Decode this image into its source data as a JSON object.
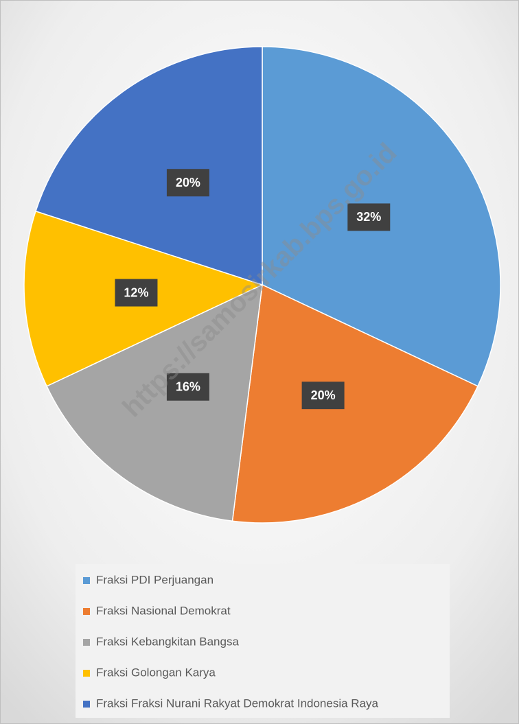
{
  "chart_data": {
    "type": "pie",
    "categories": [
      "Fraksi PDI Perjuangan",
      "Fraksi Nasional Demokrat",
      "Fraksi Kebangkitan Bangsa",
      "Fraksi Golongan Karya",
      "Fraksi Fraksi Nurani Rakyat Demokrat Indonesia Raya"
    ],
    "values": [
      32,
      20,
      16,
      12,
      20
    ],
    "value_labels": [
      "32%",
      "20%",
      "16%",
      "12%",
      "20%"
    ],
    "colors": [
      "#5b9bd5",
      "#ed7d31",
      "#a5a5a5",
      "#ffc000",
      "#4472c4"
    ],
    "legend": "bottom",
    "watermark": "https://samosirkab.bps.go.id"
  }
}
